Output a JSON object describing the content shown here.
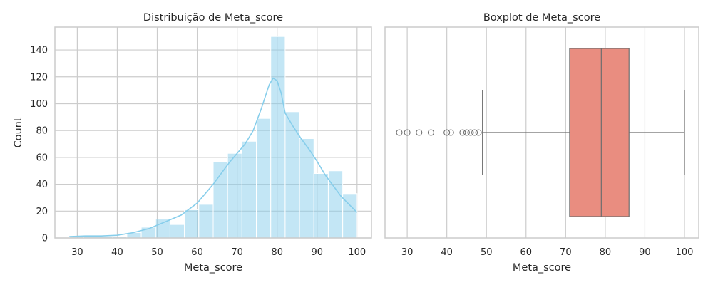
{
  "chart_data": [
    {
      "type": "bar",
      "title": "Distribuição de Meta_score",
      "xlabel": "Meta_score",
      "ylabel": "Count",
      "xlim": [
        24.4,
        103.6
      ],
      "ylim": [
        0,
        157
      ],
      "xticks": [
        "30",
        "40",
        "50",
        "60",
        "70",
        "80",
        "90",
        "100"
      ],
      "yticks": [
        "0",
        "20",
        "40",
        "60",
        "80",
        "100",
        "120",
        "140"
      ],
      "grid": true,
      "bar_color": "#87ceeb",
      "bins": [
        {
          "x0": 28.0,
          "x1": 31.6,
          "count": 1
        },
        {
          "x0": 31.6,
          "x1": 35.2,
          "count": 1
        },
        {
          "x0": 35.2,
          "x1": 38.8,
          "count": 1
        },
        {
          "x0": 38.8,
          "x1": 42.4,
          "count": 1
        },
        {
          "x0": 42.4,
          "x1": 46.0,
          "count": 4
        },
        {
          "x0": 46.0,
          "x1": 49.6,
          "count": 8
        },
        {
          "x0": 49.6,
          "x1": 53.2,
          "count": 14
        },
        {
          "x0": 53.2,
          "x1": 56.8,
          "count": 10
        },
        {
          "x0": 56.8,
          "x1": 60.4,
          "count": 21
        },
        {
          "x0": 60.4,
          "x1": 64.0,
          "count": 25
        },
        {
          "x0": 64.0,
          "x1": 67.6,
          "count": 57
        },
        {
          "x0": 67.6,
          "x1": 71.2,
          "count": 63
        },
        {
          "x0": 71.2,
          "x1": 74.8,
          "count": 72
        },
        {
          "x0": 74.8,
          "x1": 78.4,
          "count": 89
        },
        {
          "x0": 78.4,
          "x1": 82.0,
          "count": 150
        },
        {
          "x0": 82.0,
          "x1": 85.6,
          "count": 94
        },
        {
          "x0": 85.6,
          "x1": 89.2,
          "count": 74
        },
        {
          "x0": 89.2,
          "x1": 92.8,
          "count": 48
        },
        {
          "x0": 92.8,
          "x1": 96.4,
          "count": 50
        },
        {
          "x0": 96.4,
          "x1": 100.0,
          "count": 33
        }
      ],
      "kde": {
        "color": "#87ceeb",
        "points": [
          [
            28,
            1
          ],
          [
            32,
            1.5
          ],
          [
            36,
            1.5
          ],
          [
            40,
            2
          ],
          [
            44,
            4
          ],
          [
            48,
            7
          ],
          [
            52,
            12
          ],
          [
            56,
            17
          ],
          [
            60,
            26
          ],
          [
            64,
            40
          ],
          [
            66,
            48
          ],
          [
            68,
            56
          ],
          [
            70,
            63
          ],
          [
            72,
            70
          ],
          [
            74,
            80
          ],
          [
            76,
            96
          ],
          [
            78,
            114
          ],
          [
            79,
            119
          ],
          [
            80,
            117
          ],
          [
            81,
            108
          ],
          [
            82,
            93
          ],
          [
            84,
            83
          ],
          [
            86,
            74
          ],
          [
            88,
            66
          ],
          [
            90,
            57
          ],
          [
            92,
            47
          ],
          [
            94,
            39
          ],
          [
            96,
            31
          ],
          [
            98,
            25
          ],
          [
            100,
            19
          ]
        ]
      }
    },
    {
      "type": "boxplot",
      "title": "Boxplot de Meta_score",
      "xlabel": "Meta_score",
      "xlim": [
        24.4,
        103.6
      ],
      "xticks": [
        "30",
        "40",
        "50",
        "60",
        "70",
        "80",
        "90",
        "100"
      ],
      "grid": true,
      "box_color": "#e98d80",
      "line_color": "#6e6e6e",
      "whisker_low": 49,
      "q1": 71,
      "median": 79,
      "q3": 86,
      "whisker_high": 100,
      "outliers": [
        28,
        30,
        33,
        36,
        40,
        41,
        44,
        45,
        46,
        47,
        48
      ]
    }
  ]
}
